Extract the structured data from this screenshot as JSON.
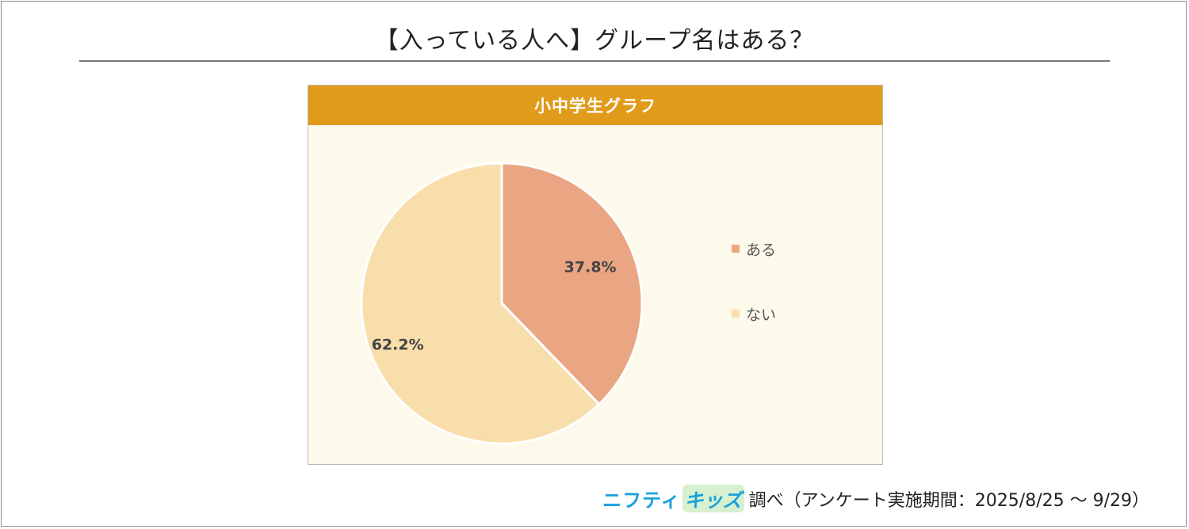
{
  "page": {
    "title": "【入っている人へ】グループ名はある？"
  },
  "panel": {
    "header": "小中学生グラフ"
  },
  "chart_data": {
    "type": "pie",
    "categories": [
      "ある",
      "ない"
    ],
    "values": [
      37.8,
      62.2
    ],
    "value_labels": [
      "37.8%",
      "62.2%"
    ],
    "colors": [
      "#eaa582",
      "#f8deab"
    ],
    "legend_position": "right"
  },
  "legend": {
    "items": [
      {
        "label": "ある",
        "color": "#eaa582"
      },
      {
        "label": "ない",
        "color": "#f8deab"
      }
    ]
  },
  "footer": {
    "brand_part1": "ニフティ",
    "brand_part2": "キッズ",
    "text": "調べ（アンケート実施期間：2025/8/25 ～ 9/29）"
  }
}
